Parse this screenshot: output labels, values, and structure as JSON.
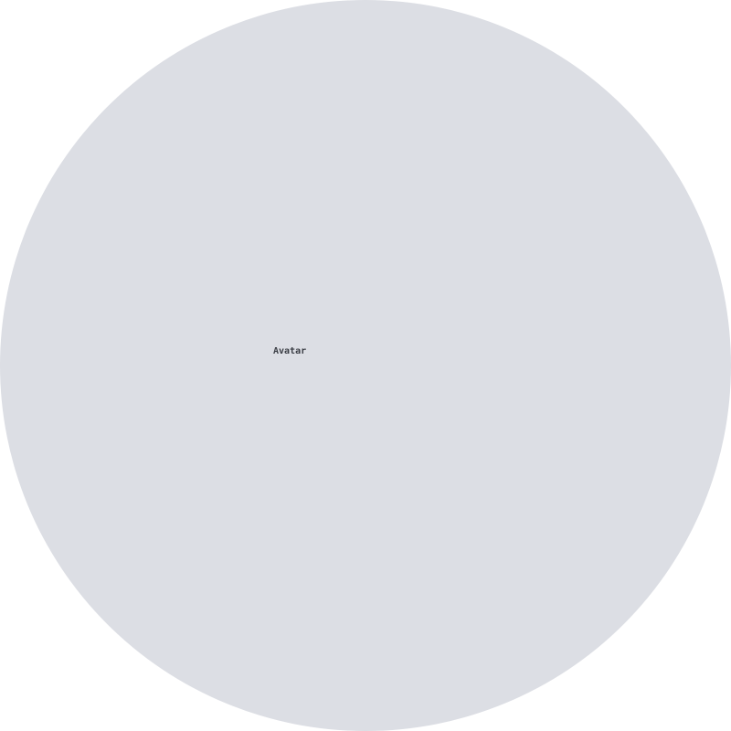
{
  "avatar": {
    "alt_text": "Avatar",
    "background_color": "#dcdee4",
    "text_color": "#3a3d44"
  }
}
